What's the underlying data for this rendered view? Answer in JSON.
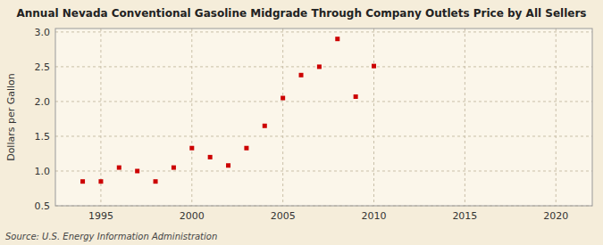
{
  "chart_data": {
    "type": "scatter",
    "title": "Annual Nevada Conventional Gasoline Midgrade Through Company Outlets Price by All Sellers",
    "y_label": "Dollars per Gallon",
    "annotations": [
      "Source: U.S. Energy Information Administration"
    ],
    "x": [
      1994,
      1995,
      1996,
      1997,
      1998,
      1999,
      2000,
      2001,
      2002,
      2003,
      2004,
      2005,
      2006,
      2007,
      2008,
      2009,
      2010
    ],
    "values": [
      0.85,
      0.85,
      1.05,
      1.0,
      0.85,
      1.05,
      1.33,
      1.2,
      1.08,
      1.33,
      1.65,
      2.05,
      2.38,
      2.5,
      2.9,
      2.07,
      2.51
    ],
    "color": "#cc0000",
    "marker": "square",
    "xlim": [
      1992.5,
      2022
    ],
    "ylim": [
      0.5,
      3.05
    ],
    "xticks": [
      1995,
      2000,
      2005,
      2010,
      2015,
      2020
    ],
    "yticks": [
      0.5,
      {
        "value": 1.0,
        "label": "1.0"
      },
      1.5,
      {
        "value": 2.0,
        "label": "2.0"
      },
      2.5,
      {
        "value": 3.0,
        "label": "3.0"
      }
    ],
    "grid": true
  }
}
